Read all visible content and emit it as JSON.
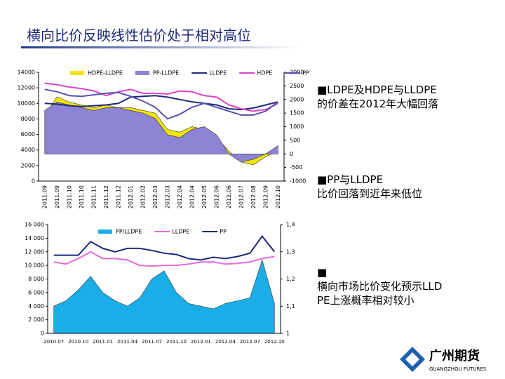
{
  "title": "横向比价反映线性估价处于相对高位",
  "notes": [
    [
      "■LDPE及HDPE与LLDPE",
      "的价差在2012年大幅回落"
    ],
    [
      "■PP与LLDPE",
      "比价回落到近年来低位"
    ],
    [
      "■",
      "横向市场比价变化预示LLD",
      "PE上涨概率相对较小"
    ]
  ],
  "logo": {
    "name": "广州期货",
    "subtitle": "GUANGZHOU FUTURES"
  },
  "chart_data": [
    {
      "type": "line",
      "categories": [
        "2011.09",
        "2011.09",
        "2011.10",
        "2011.10",
        "2011.11",
        "2011.12",
        "2011.12",
        "2012.01",
        "2012.02",
        "2012.03",
        "2012.03",
        "2012.04",
        "2012.04",
        "2012.05",
        "2012.06",
        "2012.06",
        "2012.07",
        "2012.08",
        "2012.09",
        "2012.10"
      ],
      "ylim": [
        0,
        14000
      ],
      "yticks": [
        0,
        2000,
        4000,
        6000,
        8000,
        10000,
        12000,
        14000
      ],
      "y2lim": [
        -1000,
        3000
      ],
      "y2ticks": [
        -1000,
        -500,
        0,
        500,
        1000,
        1500,
        2000,
        2500,
        3000
      ],
      "series": [
        {
          "name": "HDPE-LLDPE",
          "type": "area",
          "axis": "y2",
          "color": "#f2e600",
          "values": [
            1400,
            2100,
            1900,
            1800,
            1700,
            1800,
            1700,
            1700,
            1600,
            1500,
            900,
            800,
            1000,
            900,
            600,
            100,
            -300,
            -400,
            -100,
            100
          ]
        },
        {
          "name": "PP-LLDPE",
          "type": "area",
          "axis": "y2",
          "color": "#8d84d6",
          "values": [
            1600,
            1900,
            1800,
            1700,
            1600,
            1700,
            1700,
            1600,
            1500,
            1300,
            700,
            600,
            900,
            1000,
            700,
            0,
            -300,
            -200,
            0,
            300
          ]
        },
        {
          "name": "LLDPE",
          "type": "line",
          "color": "#1f2a78",
          "values": [
            10000,
            9900,
            9700,
            9600,
            9700,
            9800,
            10000,
            10800,
            10900,
            11000,
            10800,
            10500,
            10200,
            10000,
            9800,
            9300,
            9200,
            9400,
            9800,
            10200
          ]
        },
        {
          "name": "HDPE",
          "type": "line",
          "color": "#e040c8",
          "values": [
            12600,
            12400,
            12100,
            11900,
            11600,
            11000,
            11500,
            11800,
            11300,
            11300,
            11200,
            11600,
            11500,
            11000,
            10800,
            9800,
            9300,
            9000,
            9200,
            10000
          ]
        },
        {
          "name": "PP",
          "type": "line",
          "color": "#5a4fb0",
          "values": [
            11800,
            11500,
            11000,
            10900,
            11100,
            11300,
            11400,
            10900,
            10300,
            9500,
            8000,
            8600,
            9500,
            10000,
            9500,
            9000,
            8500,
            8500,
            9000,
            10200
          ]
        }
      ]
    },
    {
      "type": "line",
      "categories": [
        "2010.07",
        null,
        "2010.10",
        null,
        "2011.01",
        null,
        "2011.04",
        null,
        "2011.07",
        null,
        "2011.10",
        null,
        "2012.01",
        null,
        "2012.04",
        null,
        "2012.07",
        null,
        "2012.10"
      ],
      "ylim": [
        0,
        16000
      ],
      "yticks": [
        0,
        {
          "value": 2000,
          "label": "2 000"
        },
        {
          "value": 4000,
          "label": "4 000"
        },
        {
          "value": 6000,
          "label": "6 000"
        },
        {
          "value": 8000,
          "label": "8 000"
        },
        {
          "value": 10000,
          "label": "10 000"
        },
        {
          "value": 12000,
          "label": "12 000"
        },
        {
          "value": 14000,
          "label": "14 000"
        },
        {
          "value": 16000,
          "label": "16 000"
        }
      ],
      "y2lim": [
        1,
        1.4
      ],
      "y2ticks": [
        1,
        {
          "value": 1.1,
          "label": "1,1"
        },
        {
          "value": 1.2,
          "label": "1,2"
        },
        {
          "value": 1.3,
          "label": "1,3"
        },
        {
          "value": 1.4,
          "label": "1,4"
        }
      ],
      "series": [
        {
          "name": "PP/LLDPE",
          "type": "area",
          "axis": "y2",
          "color": "#1aaee8",
          "values": [
            1.1,
            1.12,
            1.16,
            1.21,
            1.15,
            1.12,
            1.1,
            1.13,
            1.2,
            1.23,
            1.15,
            1.11,
            1.1,
            1.09,
            1.11,
            1.12,
            1.13,
            1.27,
            1.11
          ]
        },
        {
          "name": "LLDPE",
          "type": "line",
          "color": "#e86ad8",
          "values": [
            10500,
            10200,
            11000,
            12000,
            11000,
            11000,
            10800,
            10000,
            9900,
            10000,
            10000,
            10200,
            10500,
            10500,
            10200,
            10300,
            10500,
            11000,
            11300
          ]
        },
        {
          "name": "PP",
          "type": "line",
          "color": "#1f2a78",
          "values": [
            11500,
            11500,
            11500,
            13500,
            12500,
            12000,
            12500,
            12500,
            12200,
            11800,
            11600,
            11000,
            10800,
            11200,
            11000,
            11300,
            11800,
            14300,
            12000
          ]
        }
      ]
    }
  ]
}
